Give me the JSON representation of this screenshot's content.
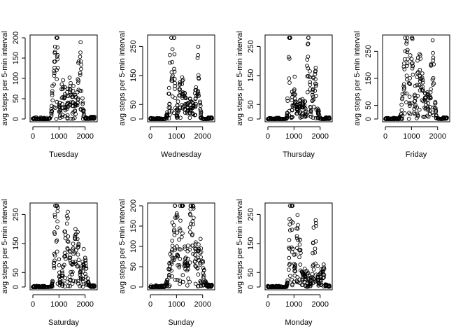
{
  "figure": {
    "ylabel": "avg steps per 5-min interval",
    "xticks": [
      0,
      1000,
      2000
    ]
  },
  "chart_data": [
    {
      "type": "scatter",
      "title": "",
      "xlabel": "Tuesday",
      "ylabel": "avg steps per 5-min interval",
      "xlim": [
        0,
        2355
      ],
      "ylim": [
        0,
        200
      ],
      "yticks": [
        0,
        50,
        100,
        150,
        200
      ],
      "peaks": [
        {
          "x": 830,
          "y": 125,
          "w": 90
        },
        {
          "x": 900,
          "y": 200,
          "w": 70
        },
        {
          "x": 1150,
          "y": 65,
          "w": 150
        },
        {
          "x": 1450,
          "y": 70,
          "w": 200
        },
        {
          "x": 1800,
          "y": 130,
          "w": 100
        },
        {
          "x": 1550,
          "y": 40,
          "w": 300
        }
      ],
      "spread": 0.55
    },
    {
      "type": "scatter",
      "title": "",
      "xlabel": "Wednesday",
      "ylabel": "avg steps per 5-min interval",
      "xlim": [
        0,
        2355
      ],
      "ylim": [
        0,
        280
      ],
      "yticks": [
        0,
        50,
        150,
        250
      ],
      "peaks": [
        {
          "x": 800,
          "y": 180,
          "w": 110
        },
        {
          "x": 900,
          "y": 280,
          "w": 40
        },
        {
          "x": 1200,
          "y": 95,
          "w": 180
        },
        {
          "x": 1800,
          "y": 200,
          "w": 90
        },
        {
          "x": 1500,
          "y": 45,
          "w": 250
        }
      ],
      "spread": 0.6
    },
    {
      "type": "scatter",
      "title": "",
      "xlabel": "Thursday",
      "ylabel": "avg steps per 5-min interval",
      "xlim": [
        0,
        2355
      ],
      "ylim": [
        0,
        280
      ],
      "yticks": [
        0,
        50,
        150,
        250
      ],
      "peaks": [
        {
          "x": 830,
          "y": 265,
          "w": 60
        },
        {
          "x": 1000,
          "y": 110,
          "w": 100
        },
        {
          "x": 1550,
          "y": 250,
          "w": 60
        },
        {
          "x": 1800,
          "y": 120,
          "w": 110
        },
        {
          "x": 1300,
          "y": 45,
          "w": 300
        }
      ],
      "spread": 0.6
    },
    {
      "type": "scatter",
      "title": "",
      "xlabel": "Friday",
      "ylabel": "avg steps per 5-min interval",
      "xlim": [
        0,
        2355
      ],
      "ylim": [
        0,
        300
      ],
      "yticks": [
        0,
        50,
        150,
        250
      ],
      "peaks": [
        {
          "x": 800,
          "y": 240,
          "w": 130
        },
        {
          "x": 1000,
          "y": 300,
          "w": 60
        },
        {
          "x": 1300,
          "y": 170,
          "w": 200
        },
        {
          "x": 1800,
          "y": 200,
          "w": 90
        },
        {
          "x": 1550,
          "y": 70,
          "w": 250
        }
      ],
      "spread": 0.5
    },
    {
      "type": "scatter",
      "title": "",
      "xlabel": "Saturday",
      "ylabel": "avg steps per 5-min interval",
      "xlim": [
        0,
        2355
      ],
      "ylim": [
        0,
        280
      ],
      "yticks": [
        0,
        50,
        150,
        250
      ],
      "peaks": [
        {
          "x": 900,
          "y": 270,
          "w": 90
        },
        {
          "x": 1300,
          "y": 200,
          "w": 150
        },
        {
          "x": 1650,
          "y": 150,
          "w": 180
        },
        {
          "x": 1950,
          "y": 100,
          "w": 120
        },
        {
          "x": 1400,
          "y": 60,
          "w": 350
        }
      ],
      "spread": 0.5
    },
    {
      "type": "scatter",
      "title": "",
      "xlabel": "Sunday",
      "ylabel": "avg steps per 5-min interval",
      "xlim": [
        0,
        2355
      ],
      "ylim": [
        0,
        200
      ],
      "yticks": [
        0,
        50,
        100,
        150,
        200
      ],
      "peaks": [
        {
          "x": 950,
          "y": 140,
          "w": 200
        },
        {
          "x": 1200,
          "y": 200,
          "w": 100
        },
        {
          "x": 1600,
          "y": 180,
          "w": 150
        },
        {
          "x": 1900,
          "y": 80,
          "w": 150
        },
        {
          "x": 1400,
          "y": 70,
          "w": 400
        }
      ],
      "spread": 0.55
    },
    {
      "type": "scatter",
      "title": "",
      "xlabel": "Monday",
      "ylabel": "avg steps per 5-min interval",
      "xlim": [
        0,
        2355
      ],
      "ylim": [
        0,
        280
      ],
      "yticks": [
        0,
        50,
        150,
        250
      ],
      "peaks": [
        {
          "x": 900,
          "y": 275,
          "w": 90
        },
        {
          "x": 1150,
          "y": 160,
          "w": 120
        },
        {
          "x": 1800,
          "y": 180,
          "w": 90
        },
        {
          "x": 2100,
          "y": 60,
          "w": 120
        },
        {
          "x": 1400,
          "y": 40,
          "w": 300
        }
      ],
      "spread": 0.6
    }
  ]
}
